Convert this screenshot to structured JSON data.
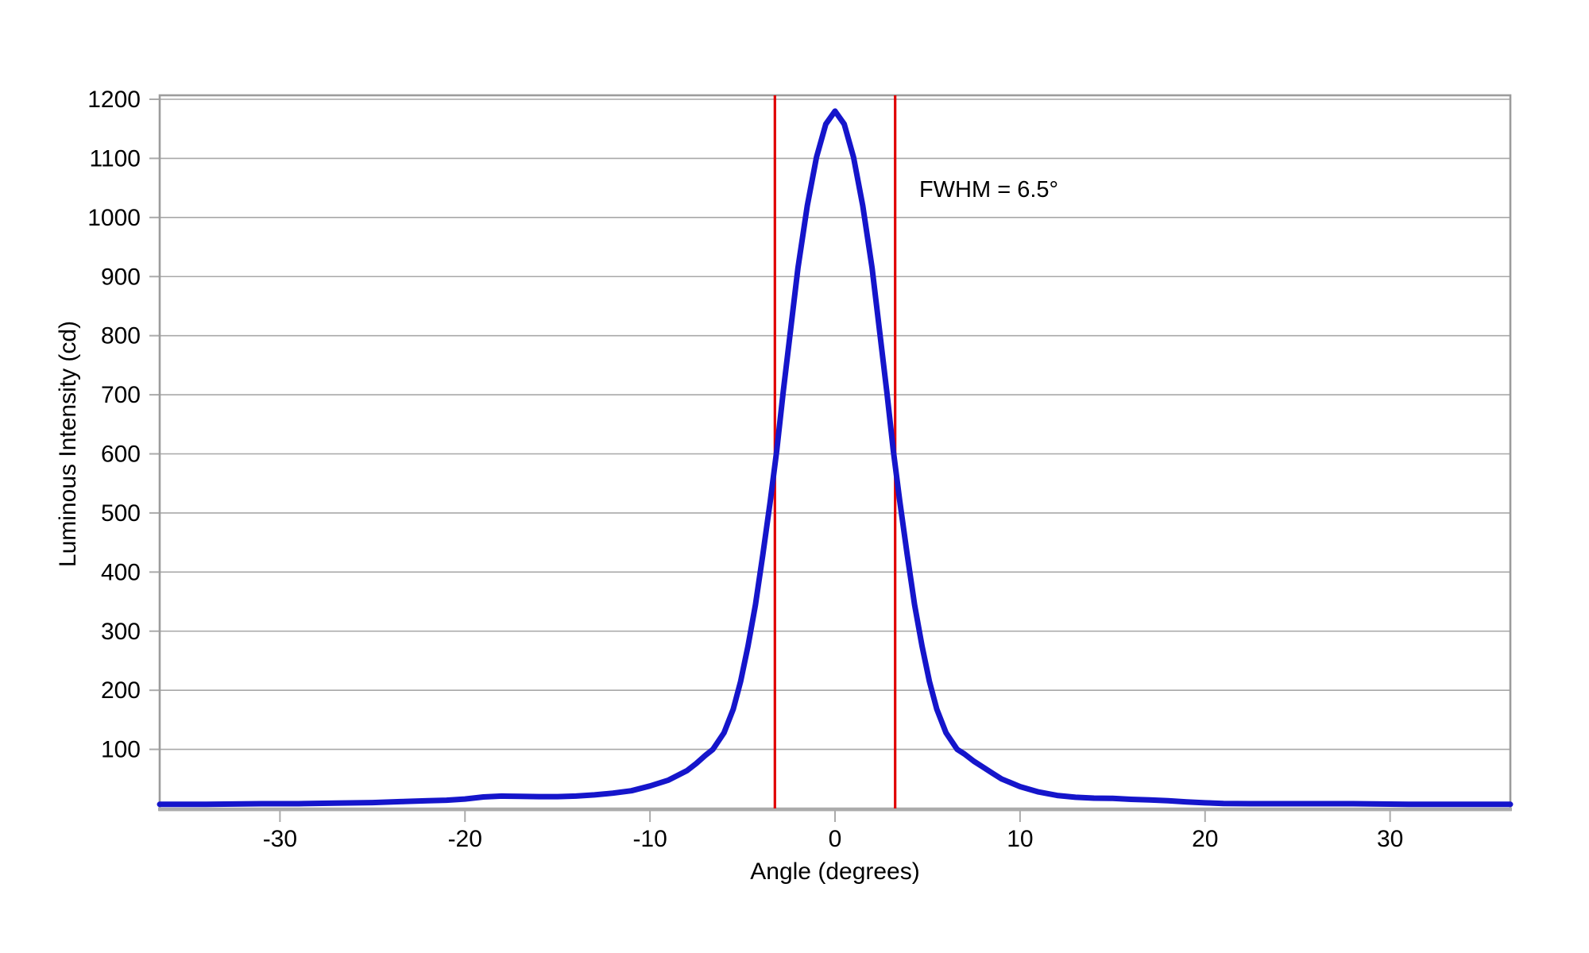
{
  "chart_data": {
    "type": "line",
    "title": "",
    "xlabel": "Angle (degrees)",
    "ylabel": "Luminous Intensity (cd)",
    "xlim": [
      -36.5,
      36.5
    ],
    "ylim": [
      0,
      1200
    ],
    "x_ticks": [
      -30,
      -20,
      -10,
      0,
      10,
      20,
      30
    ],
    "y_ticks": [
      100,
      200,
      300,
      400,
      500,
      600,
      700,
      800,
      900,
      1000,
      1100,
      1200
    ],
    "grid": "horizontal",
    "legend": "none",
    "series": [
      {
        "name": "luminous-intensity-curve",
        "color": "#1515CB",
        "points": [
          [
            -36.5,
            7
          ],
          [
            -34,
            7
          ],
          [
            -31,
            8
          ],
          [
            -29,
            8
          ],
          [
            -27,
            9
          ],
          [
            -25,
            10
          ],
          [
            -23.5,
            11.5
          ],
          [
            -22,
            13
          ],
          [
            -21,
            14
          ],
          [
            -20,
            16
          ],
          [
            -19,
            19.5
          ],
          [
            -18,
            21
          ],
          [
            -17,
            20.5
          ],
          [
            -16,
            20
          ],
          [
            -15,
            20
          ],
          [
            -14,
            21
          ],
          [
            -13,
            23
          ],
          [
            -12,
            26
          ],
          [
            -11,
            30
          ],
          [
            -10,
            38
          ],
          [
            -9,
            48
          ],
          [
            -8,
            64
          ],
          [
            -7.5,
            76
          ],
          [
            -7,
            90
          ],
          [
            -6.6,
            100
          ],
          [
            -6,
            128
          ],
          [
            -5.5,
            168
          ],
          [
            -5.1,
            215
          ],
          [
            -4.7,
            275
          ],
          [
            -4.3,
            345
          ],
          [
            -3.9,
            430
          ],
          [
            -3.5,
            520
          ],
          [
            -3.15,
            605
          ],
          [
            -2.8,
            705
          ],
          [
            -2.4,
            810
          ],
          [
            -2.0,
            915
          ],
          [
            -1.5,
            1020
          ],
          [
            -1.0,
            1102
          ],
          [
            -0.5,
            1158
          ],
          [
            0,
            1180
          ],
          [
            0.5,
            1158
          ],
          [
            1.0,
            1102
          ],
          [
            1.5,
            1020
          ],
          [
            2.0,
            915
          ],
          [
            2.4,
            810
          ],
          [
            2.8,
            705
          ],
          [
            3.15,
            605
          ],
          [
            3.5,
            520
          ],
          [
            3.9,
            430
          ],
          [
            4.3,
            345
          ],
          [
            4.7,
            275
          ],
          [
            5.1,
            215
          ],
          [
            5.5,
            168
          ],
          [
            6.0,
            128
          ],
          [
            6.6,
            100
          ],
          [
            7.0,
            92
          ],
          [
            7.5,
            80
          ],
          [
            8.0,
            70
          ],
          [
            8.5,
            60
          ],
          [
            9,
            50
          ],
          [
            10,
            37
          ],
          [
            11,
            28
          ],
          [
            12,
            22
          ],
          [
            13,
            19
          ],
          [
            14,
            17.5
          ],
          [
            15,
            17
          ],
          [
            16,
            15.5
          ],
          [
            17,
            14.5
          ],
          [
            18,
            13
          ],
          [
            19,
            11
          ],
          [
            20,
            9.5
          ],
          [
            21,
            8.5
          ],
          [
            22.5,
            8
          ],
          [
            25,
            8
          ],
          [
            28,
            8
          ],
          [
            31,
            7
          ],
          [
            34,
            7
          ],
          [
            36.5,
            7
          ]
        ]
      }
    ],
    "peak": {
      "angle_deg": 0,
      "value_cd": 1180
    },
    "fwhm_markers": {
      "x1_deg": -3.25,
      "x2_deg": 3.25,
      "color": "#E00000"
    },
    "annotation": {
      "text": "FWHM = 6.5°",
      "x_deg": 4.55,
      "y_cd": 1035
    }
  },
  "colors": {
    "background": "#ffffff",
    "gridline": "#A8A8A8",
    "border": "#9C9C9C",
    "axis": "#ABABAB",
    "curve": "#1515CB",
    "fwhm_line": "#E00000",
    "text": "#000000"
  }
}
